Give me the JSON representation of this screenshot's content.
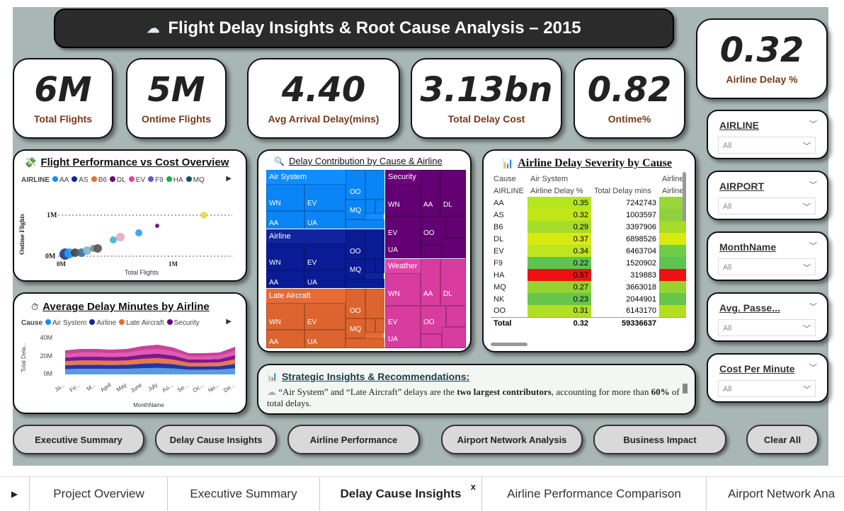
{
  "header": {
    "title": "Flight Delay Insights & Root Cause Analysis – 2015"
  },
  "kpis": [
    {
      "value": "6M",
      "label": "Total Flights"
    },
    {
      "value": "5M",
      "label": "Ontime Flights"
    },
    {
      "value": "4.40",
      "label": "Avg Arrival Delay(mins)"
    },
    {
      "value": "3.13bn",
      "label": "Total Delay Cost"
    },
    {
      "value": "0.82",
      "label": "Ontime%"
    },
    {
      "value": "0.32",
      "label": "Airline Delay %"
    }
  ],
  "scatter": {
    "title": "Flight Performance vs Cost Overview",
    "legend_title": "AIRLINE",
    "legend": [
      {
        "name": "AA",
        "color": "#118dff"
      },
      {
        "name": "AS",
        "color": "#12239e"
      },
      {
        "name": "B6",
        "color": "#e66c37"
      },
      {
        "name": "DL",
        "color": "#6b007b"
      },
      {
        "name": "EV",
        "color": "#e044a7"
      },
      {
        "name": "F9",
        "color": "#744ec2"
      },
      {
        "name": "HA",
        "color": "#1aab40"
      },
      {
        "name": "MQ",
        "color": "#15525e"
      }
    ],
    "ylabel": "Ontime Flights",
    "xlabel": "Total Flights",
    "ytick_top": "1M",
    "ytick_bottom": "0M",
    "xtick_left": "0M",
    "xtick_mid": "1M"
  },
  "area": {
    "title": "Average Delay Minutes by Airline",
    "legend_title": "Cause",
    "legend": [
      {
        "name": "Air System",
        "color": "#118dff"
      },
      {
        "name": "Airline",
        "color": "#12239e"
      },
      {
        "name": "Late Aircraft",
        "color": "#e66c37"
      },
      {
        "name": "Security",
        "color": "#6b007b"
      }
    ],
    "ylabel": "Total Dela...",
    "xlabel": "MonthName",
    "yticks": [
      "40M",
      "20M",
      "0M"
    ],
    "months": [
      "Ja...",
      "Fe...",
      "M...",
      "April",
      "May",
      "June",
      "July",
      "Au...",
      "Se...",
      "Oc...",
      "No...",
      "De..."
    ]
  },
  "treemap": {
    "title": "Delay Contribution by Cause & Airline",
    "groups": [
      {
        "name": "Air System",
        "color": "#118dff",
        "labels": [
          "WN",
          "EV",
          "AA",
          "UA",
          "OO",
          "MQ"
        ]
      },
      {
        "name": "Airline",
        "color": "#12239e",
        "labels": [
          "WN",
          "EV",
          "AA",
          "UA",
          "OO",
          "MQ"
        ]
      },
      {
        "name": "Late Aircraft",
        "color": "#e66c37",
        "labels": [
          "WN",
          "EV",
          "AA",
          "UA",
          "OO",
          "MQ"
        ]
      },
      {
        "name": "Security",
        "color": "#6b007b",
        "labels": [
          "WN",
          "AA",
          "DL",
          "EV",
          "OO",
          "UA"
        ]
      },
      {
        "name": "Weather",
        "color": "#e044a7",
        "labels": [
          "WN",
          "AA",
          "DL",
          "EV",
          "OO",
          "UA"
        ]
      }
    ]
  },
  "severity": {
    "title": "Airline Delay Severity by Cause",
    "header1": [
      "Cause",
      "Air System",
      "",
      "Airline"
    ],
    "header2": [
      "AIRLINE",
      "Airline Delay %",
      "Total Delay mins",
      "Airline"
    ],
    "rows": [
      {
        "airline": "AA",
        "pct": "0.35",
        "mins": "7242743",
        "color": "#b5e61d",
        "color2": "#9ad63a"
      },
      {
        "airline": "AS",
        "pct": "0.32",
        "mins": "1003597",
        "color": "#c3e619",
        "color2": "#8fd13e"
      },
      {
        "airline": "B6",
        "pct": "0.29",
        "mins": "3397906",
        "color": "#a6dc2a",
        "color2": "#a6dc2a"
      },
      {
        "airline": "DL",
        "pct": "0.37",
        "mins": "6898526",
        "color": "#d8ea10",
        "color2": "#d8ea10"
      },
      {
        "airline": "EV",
        "pct": "0.34",
        "mins": "6463704",
        "color": "#bfe420",
        "color2": "#6fcc48"
      },
      {
        "airline": "F9",
        "pct": "0.22",
        "mins": "1520902",
        "color": "#5ec450",
        "color2": "#5ec450"
      },
      {
        "airline": "HA",
        "pct": "0.57",
        "mins": "319883",
        "color": "#ee1111",
        "color2": "#ee1111"
      },
      {
        "airline": "MQ",
        "pct": "0.27",
        "mins": "3663018",
        "color": "#93d431",
        "color2": "#93d431"
      },
      {
        "airline": "NK",
        "pct": "0.23",
        "mins": "2044901",
        "color": "#66c64b",
        "color2": "#66c64b"
      },
      {
        "airline": "OO",
        "pct": "0.31",
        "mins": "6143170",
        "color": "#b0e020",
        "color2": "#b0e020"
      }
    ],
    "total_label": "Total",
    "total_pct": "0.32",
    "total_mins": "59336637"
  },
  "insights": {
    "title": "Strategic Insights & Recommendations:",
    "text_a": "“Air System” and “Late Aircraft” delays are the ",
    "text_b": "two largest contributors",
    "text_c": ", accounting for more than ",
    "text_d": "60%",
    "text_e": " of total delays."
  },
  "slicers": [
    {
      "title": "AIRLINE",
      "value": "All"
    },
    {
      "title": "AIRPORT",
      "value": "All"
    },
    {
      "title": "MonthName",
      "value": "All"
    },
    {
      "title": "Avg. Passe...",
      "value": "All"
    },
    {
      "title": "Cost Per Minute",
      "value": "All"
    }
  ],
  "nav": [
    "Executive Summary",
    "Delay Cause Insights",
    "Airline Performance",
    "Airport Network Analysis",
    "Business Impact",
    "Clear All"
  ],
  "tabs": [
    "Project Overview",
    "Executive Summary",
    "Delay Cause Insights",
    "Airline Performance Comparison",
    "Airport Network Ana"
  ],
  "active_tab_close": "x"
}
